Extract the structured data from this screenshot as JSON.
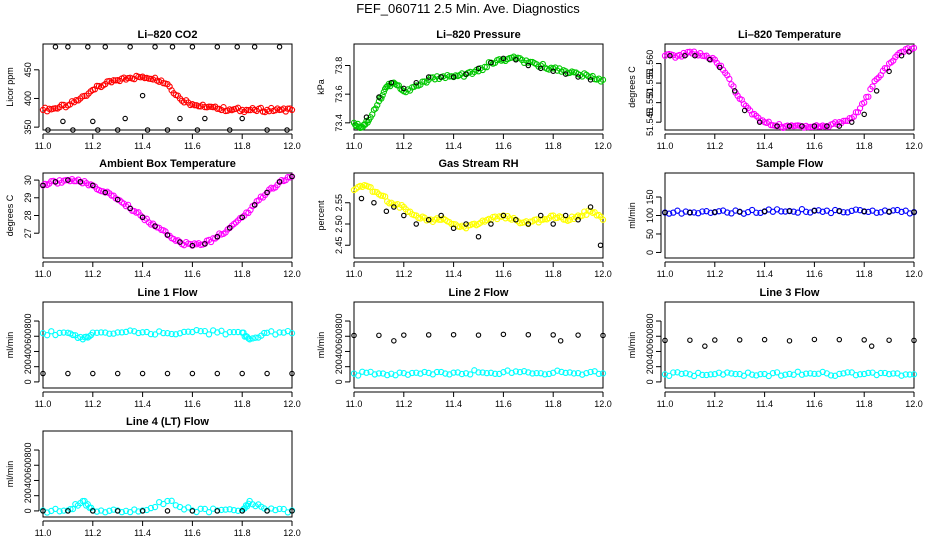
{
  "figure": {
    "title": "FEF_060711  2.5 Min. Ave. Diagnostics"
  },
  "colors": {
    "red": "#ff0000",
    "green": "#00c800",
    "magenta": "#ff00ff",
    "yellow": "#ffff00",
    "blue": "#0000ff",
    "cyan": "#00ffff",
    "black": "#000000"
  },
  "chart_data": [
    {
      "type": "scatter",
      "title": "Li–820 CO2",
      "ylabel": "Licor ppm",
      "xlim": [
        11.0,
        12.0
      ],
      "ylim": [
        345,
        495
      ],
      "xticks": [
        "11.0",
        "11.2",
        "11.4",
        "11.6",
        "11.8",
        "12.0"
      ],
      "yticks": [
        "350",
        "400",
        "450"
      ],
      "series": [
        {
          "color": "red",
          "x": [
            11.0,
            11.05,
            11.1,
            11.15,
            11.2,
            11.25,
            11.3,
            11.35,
            11.4,
            11.45,
            11.5,
            11.55,
            11.6,
            11.65,
            11.7,
            11.75,
            11.8,
            11.85,
            11.9,
            11.95,
            12.0
          ],
          "y": [
            380,
            383,
            388,
            400,
            415,
            425,
            432,
            436,
            438,
            436,
            425,
            400,
            390,
            385,
            382,
            381,
            380,
            380,
            380,
            380,
            380
          ]
        },
        {
          "color": "black",
          "x": [
            11.02,
            11.05,
            11.08,
            11.1,
            11.12,
            11.18,
            11.2,
            11.22,
            11.25,
            11.3,
            11.33,
            11.35,
            11.4,
            11.42,
            11.45,
            11.5,
            11.52,
            11.55,
            11.6,
            11.62,
            11.65,
            11.7,
            11.75,
            11.78,
            11.8,
            11.85,
            11.9,
            11.95,
            11.98
          ],
          "y": [
            345,
            490,
            360,
            490,
            345,
            490,
            360,
            345,
            490,
            345,
            365,
            490,
            405,
            345,
            490,
            345,
            490,
            365,
            490,
            345,
            365,
            490,
            345,
            490,
            365,
            490,
            345,
            490,
            345
          ]
        }
      ]
    },
    {
      "type": "scatter",
      "title": "Li–820 Pressure",
      "ylabel": "kPa",
      "xlim": [
        11.0,
        12.0
      ],
      "ylim": [
        73.35,
        73.95
      ],
      "xticks": [
        "11.0",
        "11.2",
        "11.4",
        "11.6",
        "11.8",
        "12.0"
      ],
      "yticks": [
        "73.4",
        "73.6",
        "73.8"
      ],
      "series": [
        {
          "color": "green",
          "x": [
            11.0,
            11.03,
            11.06,
            11.1,
            11.13,
            11.16,
            11.2,
            11.25,
            11.3,
            11.35,
            11.4,
            11.45,
            11.5,
            11.55,
            11.6,
            11.65,
            11.7,
            11.75,
            11.8,
            11.85,
            11.9,
            11.95,
            12.0
          ],
          "y": [
            73.4,
            73.37,
            73.42,
            73.55,
            73.65,
            73.68,
            73.62,
            73.66,
            73.7,
            73.72,
            73.72,
            73.74,
            73.76,
            73.82,
            73.84,
            73.85,
            73.82,
            73.8,
            73.78,
            73.76,
            73.74,
            73.72,
            73.7
          ]
        },
        {
          "color": "black",
          "x": [
            11.05,
            11.1,
            11.15,
            11.2,
            11.25,
            11.3,
            11.35,
            11.4,
            11.45,
            11.5,
            11.55,
            11.6,
            11.65,
            11.7,
            11.75,
            11.8,
            11.85,
            11.9,
            11.95
          ],
          "y": [
            73.44,
            73.58,
            73.68,
            73.64,
            73.68,
            73.72,
            73.72,
            73.72,
            73.74,
            73.78,
            73.82,
            73.85,
            73.84,
            73.8,
            73.78,
            73.76,
            73.74,
            73.72,
            73.7
          ]
        }
      ]
    },
    {
      "type": "scatter",
      "title": "Li–820 Temperature",
      "ylabel": "degrees C",
      "xlim": [
        11.0,
        12.0
      ],
      "ylim": [
        51.543,
        51.565
      ],
      "xticks": [
        "11.0",
        "11.2",
        "11.4",
        "11.6",
        "11.8",
        "12.0"
      ],
      "yticks": [
        "51.545",
        "51.550",
        "51.555",
        "51.560"
      ],
      "series": [
        {
          "color": "magenta",
          "x": [
            11.0,
            11.05,
            11.1,
            11.15,
            11.2,
            11.25,
            11.3,
            11.35,
            11.4,
            11.45,
            11.5,
            11.55,
            11.6,
            11.65,
            11.7,
            11.75,
            11.8,
            11.85,
            11.9,
            11.95,
            12.0
          ],
          "y": [
            51.562,
            51.562,
            51.563,
            51.562,
            51.561,
            51.557,
            51.551,
            51.547,
            51.545,
            51.544,
            51.544,
            51.544,
            51.544,
            51.544,
            51.545,
            51.546,
            51.55,
            51.556,
            51.56,
            51.563,
            51.564
          ]
        },
        {
          "color": "black",
          "x": [
            11.02,
            11.08,
            11.12,
            11.18,
            11.22,
            11.28,
            11.32,
            11.38,
            11.45,
            11.5,
            11.55,
            11.6,
            11.65,
            11.7,
            11.75,
            11.8,
            11.85,
            11.9,
            11.95,
            11.98
          ],
          "y": [
            51.562,
            51.562,
            51.562,
            51.561,
            51.559,
            51.553,
            51.548,
            51.545,
            51.544,
            51.544,
            51.544,
            51.544,
            51.544,
            51.544,
            51.545,
            51.547,
            51.553,
            51.558,
            51.562,
            51.563
          ]
        }
      ]
    },
    {
      "type": "scatter",
      "title": "Ambient Box Temperature",
      "ylabel": "degrees C",
      "xlim": [
        11.0,
        12.0
      ],
      "ylim": [
        25.6,
        30.4
      ],
      "xticks": [
        "11.0",
        "11.2",
        "11.4",
        "11.6",
        "11.8",
        "12.0"
      ],
      "yticks": [
        "27",
        "28",
        "29",
        "30"
      ],
      "series": [
        {
          "color": "magenta",
          "x": [
            11.0,
            11.05,
            11.1,
            11.15,
            11.2,
            11.25,
            11.3,
            11.35,
            11.4,
            11.45,
            11.5,
            11.55,
            11.6,
            11.65,
            11.7,
            11.75,
            11.8,
            11.85,
            11.9,
            11.95,
            12.0
          ],
          "y": [
            29.7,
            29.9,
            30.0,
            29.9,
            29.7,
            29.3,
            28.9,
            28.4,
            27.9,
            27.4,
            26.9,
            26.5,
            26.3,
            26.4,
            26.8,
            27.3,
            27.9,
            28.6,
            29.3,
            29.9,
            30.2
          ]
        },
        {
          "color": "black",
          "x": [
            11.0,
            11.05,
            11.1,
            11.15,
            11.2,
            11.25,
            11.3,
            11.35,
            11.4,
            11.45,
            11.5,
            11.55,
            11.6,
            11.65,
            11.7,
            11.75,
            11.8,
            11.85,
            11.9,
            11.95,
            12.0
          ],
          "y": [
            29.7,
            29.9,
            30.0,
            29.9,
            29.7,
            29.3,
            28.9,
            28.4,
            27.9,
            27.4,
            26.9,
            26.5,
            26.3,
            26.4,
            26.8,
            27.3,
            27.9,
            28.6,
            29.3,
            29.9,
            30.2
          ]
        }
      ]
    },
    {
      "type": "scatter",
      "title": "Gas Stream RH",
      "ylabel": "percent",
      "xlim": [
        11.0,
        12.0
      ],
      "ylim": [
        2.42,
        2.62
      ],
      "xticks": [
        "11.0",
        "11.2",
        "11.4",
        "11.6",
        "11.8",
        "12.0"
      ],
      "yticks": [
        "2.45",
        "2.50",
        "2.55"
      ],
      "series": [
        {
          "color": "yellow",
          "x": [
            11.0,
            11.05,
            11.1,
            11.15,
            11.2,
            11.25,
            11.3,
            11.35,
            11.4,
            11.45,
            11.5,
            11.55,
            11.6,
            11.65,
            11.7,
            11.75,
            11.8,
            11.85,
            11.9,
            11.95,
            12.0
          ],
          "y": [
            2.58,
            2.59,
            2.57,
            2.55,
            2.54,
            2.52,
            2.51,
            2.51,
            2.5,
            2.49,
            2.5,
            2.51,
            2.52,
            2.51,
            2.5,
            2.51,
            2.52,
            2.51,
            2.52,
            2.53,
            2.51
          ]
        },
        {
          "color": "black",
          "x": [
            11.03,
            11.08,
            11.13,
            11.16,
            11.2,
            11.25,
            11.3,
            11.35,
            11.4,
            11.45,
            11.5,
            11.55,
            11.6,
            11.65,
            11.7,
            11.75,
            11.8,
            11.85,
            11.9,
            11.95,
            11.99
          ],
          "y": [
            2.56,
            2.55,
            2.53,
            2.54,
            2.52,
            2.5,
            2.51,
            2.52,
            2.49,
            2.5,
            2.47,
            2.5,
            2.52,
            2.51,
            2.5,
            2.52,
            2.5,
            2.52,
            2.51,
            2.54,
            2.45
          ]
        }
      ]
    },
    {
      "type": "scatter",
      "title": "Sample Flow",
      "ylabel": "ml/min",
      "xlim": [
        11.0,
        12.0
      ],
      "ylim": [
        -15,
        215
      ],
      "xticks": [
        "11.0",
        "11.2",
        "11.4",
        "11.6",
        "11.8",
        "12.0"
      ],
      "yticks": [
        "0",
        "50",
        "100",
        "150"
      ],
      "series": [
        {
          "color": "blue",
          "x": [
            11.0,
            11.1,
            11.2,
            11.3,
            11.4,
            11.5,
            11.6,
            11.7,
            11.8,
            11.9,
            12.0
          ],
          "y": [
            108,
            108,
            109,
            110,
            111,
            112,
            113,
            112,
            111,
            110,
            109
          ]
        },
        {
          "color": "black",
          "x": [
            11.0,
            11.1,
            11.2,
            11.3,
            11.4,
            11.5,
            11.6,
            11.7,
            11.8,
            11.9,
            12.0
          ],
          "y": [
            108,
            108,
            109,
            110,
            111,
            112,
            113,
            112,
            111,
            110,
            109
          ]
        }
      ]
    },
    {
      "type": "scatter",
      "title": "Line 1 Flow",
      "ylabel": "ml/min",
      "xlim": [
        11.0,
        12.0
      ],
      "ylim": [
        -80,
        1050
      ],
      "xticks": [
        "11.0",
        "11.2",
        "11.4",
        "11.6",
        "11.8",
        "12.0"
      ],
      "yticks": [
        "0",
        "200",
        "400",
        "600",
        "800"
      ],
      "series": [
        {
          "color": "cyan",
          "x": [
            11.0,
            11.1,
            11.16,
            11.2,
            11.3,
            11.4,
            11.5,
            11.6,
            11.7,
            11.8,
            11.83,
            11.9,
            12.0
          ],
          "y": [
            640,
            645,
            560,
            648,
            650,
            652,
            640,
            655,
            650,
            648,
            560,
            645,
            640
          ]
        },
        {
          "color": "black",
          "x": [
            11.0,
            11.1,
            11.2,
            11.3,
            11.4,
            11.5,
            11.6,
            11.7,
            11.8,
            11.9,
            12.0
          ],
          "y": [
            110,
            110,
            110,
            110,
            110,
            110,
            110,
            110,
            110,
            110,
            110
          ]
        }
      ]
    },
    {
      "type": "scatter",
      "title": "Line 2 Flow",
      "ylabel": "ml/min",
      "xlim": [
        11.0,
        12.0
      ],
      "ylim": [
        -80,
        1050
      ],
      "xticks": [
        "11.0",
        "11.2",
        "11.4",
        "11.6",
        "11.8",
        "12.0"
      ],
      "yticks": [
        "0",
        "200",
        "400",
        "600",
        "800"
      ],
      "series": [
        {
          "color": "cyan",
          "x": [
            11.0,
            11.1,
            11.2,
            11.3,
            11.4,
            11.5,
            11.6,
            11.7,
            11.8,
            11.9,
            12.0
          ],
          "y": [
            110,
            112,
            115,
            118,
            122,
            125,
            128,
            125,
            120,
            115,
            112
          ]
        },
        {
          "color": "black",
          "x": [
            11.0,
            11.1,
            11.16,
            11.2,
            11.3,
            11.4,
            11.5,
            11.6,
            11.7,
            11.8,
            11.83,
            11.9,
            12.0
          ],
          "y": [
            610,
            612,
            540,
            615,
            618,
            620,
            615,
            625,
            620,
            618,
            540,
            615,
            610
          ]
        }
      ]
    },
    {
      "type": "scatter",
      "title": "Line 3 Flow",
      "ylabel": "ml/min",
      "xlim": [
        11.0,
        12.0
      ],
      "ylim": [
        -80,
        1050
      ],
      "xticks": [
        "11.0",
        "11.2",
        "11.4",
        "11.6",
        "11.8",
        "12.0"
      ],
      "yticks": [
        "0",
        "200",
        "400",
        "600",
        "800"
      ],
      "series": [
        {
          "color": "cyan",
          "x": [
            11.0,
            11.1,
            11.2,
            11.3,
            11.4,
            11.5,
            11.6,
            11.7,
            11.8,
            11.9,
            12.0
          ],
          "y": [
            100,
            100,
            102,
            103,
            104,
            105,
            106,
            105,
            104,
            102,
            100
          ]
        },
        {
          "color": "black",
          "x": [
            11.0,
            11.1,
            11.16,
            11.2,
            11.3,
            11.4,
            11.5,
            11.6,
            11.7,
            11.8,
            11.83,
            11.9,
            12.0
          ],
          "y": [
            545,
            548,
            470,
            550,
            552,
            555,
            540,
            558,
            555,
            552,
            470,
            548,
            545
          ]
        }
      ]
    },
    {
      "type": "scatter",
      "title": "Line 4 (LT) Flow",
      "ylabel": "ml/min",
      "xlim": [
        11.0,
        12.0
      ],
      "ylim": [
        -80,
        1050
      ],
      "xticks": [
        "11.0",
        "11.2",
        "11.4",
        "11.6",
        "11.8",
        "12.0"
      ],
      "yticks": [
        "0",
        "200",
        "400",
        "600",
        "800"
      ],
      "series": [
        {
          "color": "cyan",
          "x": [
            11.0,
            11.1,
            11.16,
            11.2,
            11.3,
            11.4,
            11.5,
            11.6,
            11.7,
            11.8,
            11.83,
            11.9,
            12.0
          ],
          "y": [
            5,
            5,
            130,
            5,
            5,
            5,
            130,
            5,
            5,
            5,
            130,
            5,
            5
          ]
        },
        {
          "color": "black",
          "x": [
            11.0,
            11.1,
            11.2,
            11.3,
            11.4,
            11.5,
            11.6,
            11.7,
            11.8,
            11.9,
            12.0
          ],
          "y": [
            0,
            0,
            0,
            0,
            0,
            0,
            0,
            0,
            0,
            0,
            0
          ]
        }
      ]
    }
  ]
}
